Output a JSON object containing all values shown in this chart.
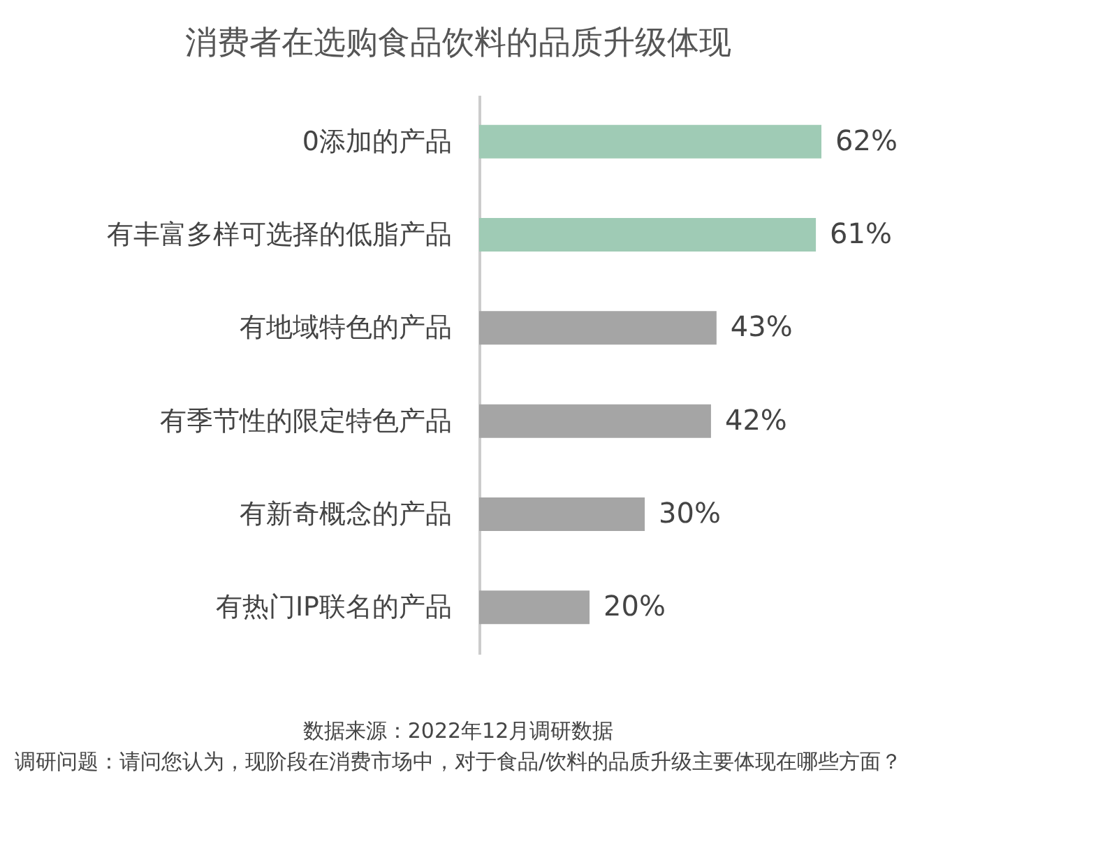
{
  "chart_data": {
    "type": "bar",
    "orientation": "horizontal",
    "title": "消费者在选购食品饮料的品质升级体现",
    "categories": [
      "0添加的产品",
      "有丰富多样可选择的低脂产品",
      "有地域特色的产品",
      "有季节性的限定特色产品",
      "有新奇概念的产品",
      "有热门IP联名的产品"
    ],
    "values": [
      62,
      61,
      43,
      42,
      30,
      20
    ],
    "colors": [
      "#9fcbb5",
      "#9fcbb5",
      "#a5a5a5",
      "#a5a5a5",
      "#a5a5a5",
      "#a5a5a5"
    ],
    "value_labels": [
      "62%",
      "61%",
      "43%",
      "42%",
      "30%",
      "20%"
    ],
    "annotations": [
      "数据来源：2022年12月调研数据",
      "调研问题：请问您认为，现阶段在消费市场中，对于食品/饮料的品质升级主要体现在哪些方面？"
    ],
    "grid": false
  }
}
